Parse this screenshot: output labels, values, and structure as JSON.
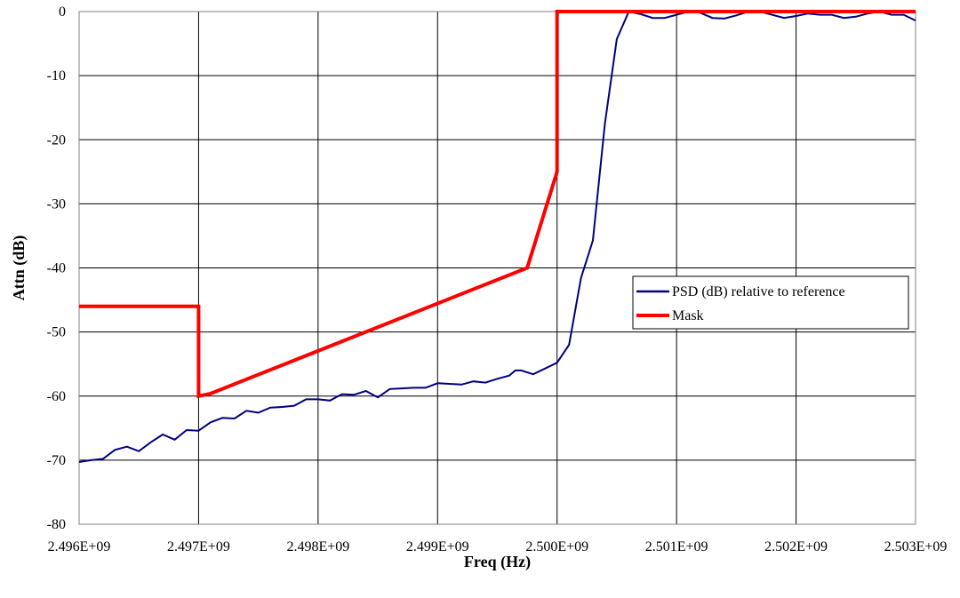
{
  "chart_data": {
    "type": "line",
    "title": "",
    "xlabel": "Freq (Hz)",
    "ylabel": "Attn (dB)",
    "xlim": [
      2496000000.0,
      2503000000.0
    ],
    "ylim": [
      -80,
      0
    ],
    "x_tick_values": [
      2496000000.0,
      2497000000.0,
      2498000000.0,
      2499000000.0,
      2500000000.0,
      2501000000.0,
      2502000000.0,
      2503000000.0
    ],
    "x_tick_labels": [
      "2.496E+09",
      "2.497E+09",
      "2.498E+09",
      "2.499E+09",
      "2.500E+09",
      "2.501E+09",
      "2.502E+09",
      "2.503E+09"
    ],
    "y_tick_values": [
      0,
      -10,
      -20,
      -30,
      -40,
      -50,
      -60,
      -70,
      -80
    ],
    "y_tick_labels": [
      "0",
      "-10",
      "-20",
      "-30",
      "-40",
      "-50",
      "-60",
      "-70",
      "-80"
    ],
    "grid": true,
    "legend_position": "middle-right",
    "series": [
      {
        "name": "PSD (dB) relative to reference",
        "color": "#000080",
        "x": [
          2496000000.0,
          2496100000.0,
          2496200000.0,
          2496300000.0,
          2496400000.0,
          2496500000.0,
          2496600000.0,
          2496700000.0,
          2496800000.0,
          2496900000.0,
          2497000000.0,
          2497100000.0,
          2497200000.0,
          2497300000.0,
          2497400000.0,
          2497500000.0,
          2497600000.0,
          2497700000.0,
          2497800000.0,
          2497900000.0,
          2498000000.0,
          2498100000.0,
          2498200000.0,
          2498300000.0,
          2498400000.0,
          2498500000.0,
          2498600000.0,
          2498700000.0,
          2498800000.0,
          2498900000.0,
          2499000000.0,
          2499100000.0,
          2499200000.0,
          2499300000.0,
          2499400000.0,
          2499500000.0,
          2499600000.0,
          2499650000.0,
          2499700000.0,
          2499800000.0,
          2499900000.0,
          2500000000.0,
          2500100000.0,
          2500200000.0,
          2500300000.0,
          2500400000.0,
          2500500000.0,
          2500600000.0,
          2500700000.0,
          2500800000.0,
          2500900000.0,
          2501000000.0,
          2501100000.0,
          2501200000.0,
          2501300000.0,
          2501400000.0,
          2501500000.0,
          2501600000.0,
          2501700000.0,
          2501800000.0,
          2501900000.0,
          2502000000.0,
          2502100000.0,
          2502200000.0,
          2502300000.0,
          2502400000.0,
          2502500000.0,
          2502600000.0,
          2502700000.0,
          2502800000.0,
          2502900000.0,
          2503000000.0
        ],
        "y": [
          -70.3,
          -70.0,
          -69.8,
          -68.4,
          -67.9,
          -68.6,
          -67.2,
          -66.0,
          -66.8,
          -65.3,
          -65.4,
          -64.1,
          -63.4,
          -63.5,
          -62.3,
          -62.6,
          -61.8,
          -61.7,
          -61.5,
          -60.5,
          -60.5,
          -60.7,
          -59.7,
          -59.8,
          -59.2,
          -60.2,
          -58.9,
          -58.8,
          -58.7,
          -58.7,
          -58.0,
          -58.1,
          -58.2,
          -57.7,
          -57.9,
          -57.3,
          -56.8,
          -56.0,
          -56.0,
          -56.6,
          -55.7,
          -54.8,
          -52.0,
          -41.6,
          -35.7,
          -17.5,
          -4.3,
          0.0,
          -0.4,
          -1.0,
          -1.0,
          -0.5,
          0.0,
          -0.2,
          -1.0,
          -1.1,
          -0.6,
          0.0,
          0.0,
          -0.5,
          -1.0,
          -0.7,
          -0.3,
          -0.5,
          -0.5,
          -1.0,
          -0.8,
          -0.3,
          0.0,
          -0.5,
          -0.5,
          -1.4
        ]
      },
      {
        "name": "Mask",
        "color": "#ff0000",
        "x": [
          2496000000.0,
          2497000000.0,
          2497000000.0,
          2497100000.0,
          2499750000.0,
          2500000000.0,
          2500000000.0,
          2503000000.0
        ],
        "y": [
          -46,
          -46,
          -60,
          -59.6,
          -40,
          -25,
          0,
          0
        ]
      }
    ]
  }
}
